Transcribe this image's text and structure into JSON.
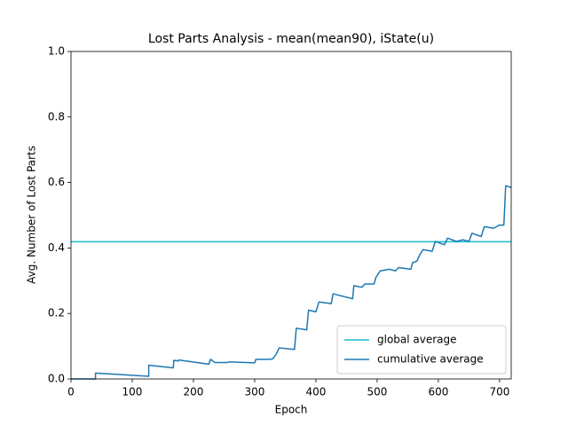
{
  "chart_data": {
    "type": "line",
    "title": "Lost Parts Analysis - mean(mean90), iState(u)",
    "x_label": "Epoch",
    "y_label": "Avg. Number of Lost Parts",
    "xlim": [
      0,
      719
    ],
    "ylim": [
      0,
      1
    ],
    "xticks": [
      0,
      100,
      200,
      300,
      400,
      500,
      600,
      700
    ],
    "yticks": [
      {
        "value": 0,
        "label": "0.0"
      },
      {
        "value": 0.2,
        "label": "0.2"
      },
      {
        "value": 0.4,
        "label": "0.4"
      },
      {
        "value": 0.6,
        "label": "0.6"
      },
      {
        "value": 0.8,
        "label": "0.8"
      },
      {
        "value": 1,
        "label": "1.0"
      }
    ],
    "reference_line": {
      "name": "global average",
      "color": "#17becf",
      "value": 0.419
    },
    "x": [
      0,
      40,
      40,
      127,
      127,
      167,
      168,
      175,
      176,
      225,
      228,
      235,
      255,
      258,
      300,
      302,
      325,
      330,
      335,
      340,
      365,
      368,
      385,
      388,
      400,
      405,
      425,
      428,
      460,
      462,
      475,
      480,
      495,
      498,
      505,
      520,
      530,
      535,
      555,
      558,
      565,
      570,
      575,
      590,
      595,
      610,
      615,
      630,
      640,
      650,
      655,
      670,
      675,
      690,
      700,
      707,
      710,
      719
    ],
    "series": [
      {
        "name": "cumulative average",
        "color": "#1f77b4",
        "values": [
          0,
          0,
          0.018,
          0.008,
          0.042,
          0.034,
          0.057,
          0.055,
          0.058,
          0.045,
          0.06,
          0.05,
          0.05,
          0.052,
          0.049,
          0.06,
          0.06,
          0.062,
          0.075,
          0.095,
          0.09,
          0.155,
          0.15,
          0.21,
          0.205,
          0.235,
          0.23,
          0.26,
          0.245,
          0.285,
          0.28,
          0.29,
          0.29,
          0.31,
          0.33,
          0.335,
          0.33,
          0.34,
          0.335,
          0.355,
          0.36,
          0.38,
          0.395,
          0.39,
          0.42,
          0.41,
          0.43,
          0.42,
          0.425,
          0.42,
          0.445,
          0.435,
          0.465,
          0.46,
          0.47,
          0.47,
          0.59,
          0.585
        ]
      }
    ],
    "legend": "lower right"
  }
}
